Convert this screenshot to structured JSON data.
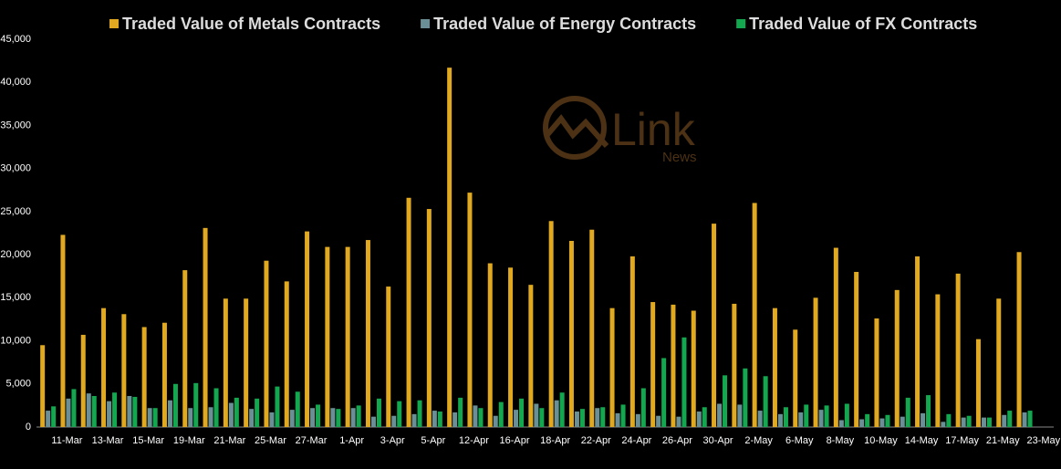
{
  "chart_data": {
    "type": "bar",
    "categories": [
      null,
      "11-Mar",
      null,
      "13-Mar",
      null,
      "15-Mar",
      null,
      "19-Mar",
      null,
      "21-Mar",
      null,
      "25-Mar",
      null,
      "27-Mar",
      null,
      "1-Apr",
      null,
      "3-Apr",
      null,
      "5-Apr",
      null,
      "12-Apr",
      null,
      "16-Apr",
      null,
      "18-Apr",
      null,
      "22-Apr",
      null,
      "24-Apr",
      null,
      "26-Apr",
      null,
      "30-Apr",
      null,
      "2-May",
      null,
      "6-May",
      null,
      "8-May",
      null,
      "10-May",
      null,
      "14-May",
      null,
      "17-May",
      null,
      "21-May",
      null,
      "23-May"
    ],
    "series": [
      {
        "name": "Traded Value of Metals Contracts",
        "color": "#e0a91f",
        "values": [
          9500,
          22300,
          10700,
          13800,
          13100,
          11600,
          12100,
          18200,
          23100,
          14900,
          14900,
          19300,
          16900,
          22700,
          20900,
          20900,
          21700,
          16300,
          26600,
          25300,
          41700,
          27200,
          19000,
          18500,
          16500,
          23900,
          21600,
          22900,
          13800,
          19800,
          14500,
          14200,
          13500,
          23600,
          14300,
          26000,
          13800,
          11300,
          15000,
          20800,
          18000,
          12600,
          15900,
          19800,
          15400,
          17800,
          10200,
          14900,
          20300,
          null
        ]
      },
      {
        "name": "Traded Value of Energy Contracts",
        "color": "#6a8f96",
        "values": [
          1900,
          3300,
          3900,
          3000,
          3600,
          2200,
          3100,
          2200,
          2300,
          2800,
          2100,
          1700,
          2000,
          2200,
          2200,
          2200,
          1200,
          1300,
          1500,
          1900,
          1700,
          2500,
          1300,
          2000,
          2700,
          3100,
          1800,
          2200,
          1600,
          1500,
          1300,
          1200,
          1800,
          2700,
          2600,
          1900,
          1500,
          1700,
          2000,
          800,
          900,
          1000,
          1200,
          1600,
          600,
          1100,
          1100,
          1400,
          1700,
          null
        ]
      },
      {
        "name": "Traded Value of FX Contracts",
        "color": "#13a84f",
        "values": [
          2400,
          4400,
          3600,
          4000,
          3500,
          2200,
          5000,
          5100,
          4500,
          3400,
          3300,
          4700,
          4100,
          2600,
          2100,
          2500,
          3300,
          3000,
          3100,
          1800,
          3400,
          2200,
          2900,
          3300,
          2200,
          4000,
          2100,
          2300,
          2600,
          4500,
          8000,
          10400,
          2300,
          6000,
          6800,
          5900,
          2300,
          2600,
          2500,
          2700,
          1500,
          1400,
          3400,
          3700,
          1500,
          1300,
          1100,
          1900,
          1900,
          null
        ]
      }
    ],
    "ylim": [
      0,
      45000
    ],
    "yticks": [
      0,
      {
        "value": 5000,
        "label": "5,000"
      },
      {
        "value": 10000,
        "label": "10,000"
      },
      {
        "value": 15000,
        "label": "15,000"
      },
      {
        "value": 20000,
        "label": "20,000"
      },
      {
        "value": 25000,
        "label": "25,000"
      },
      {
        "value": 30000,
        "label": "30,000"
      },
      {
        "value": 35000,
        "label": "35,000"
      },
      {
        "value": 40000,
        "label": "40,000"
      },
      {
        "value": 45000,
        "label": "45,000"
      }
    ],
    "legend": "top"
  },
  "watermark": {
    "brand": "Link",
    "sub": "News"
  }
}
